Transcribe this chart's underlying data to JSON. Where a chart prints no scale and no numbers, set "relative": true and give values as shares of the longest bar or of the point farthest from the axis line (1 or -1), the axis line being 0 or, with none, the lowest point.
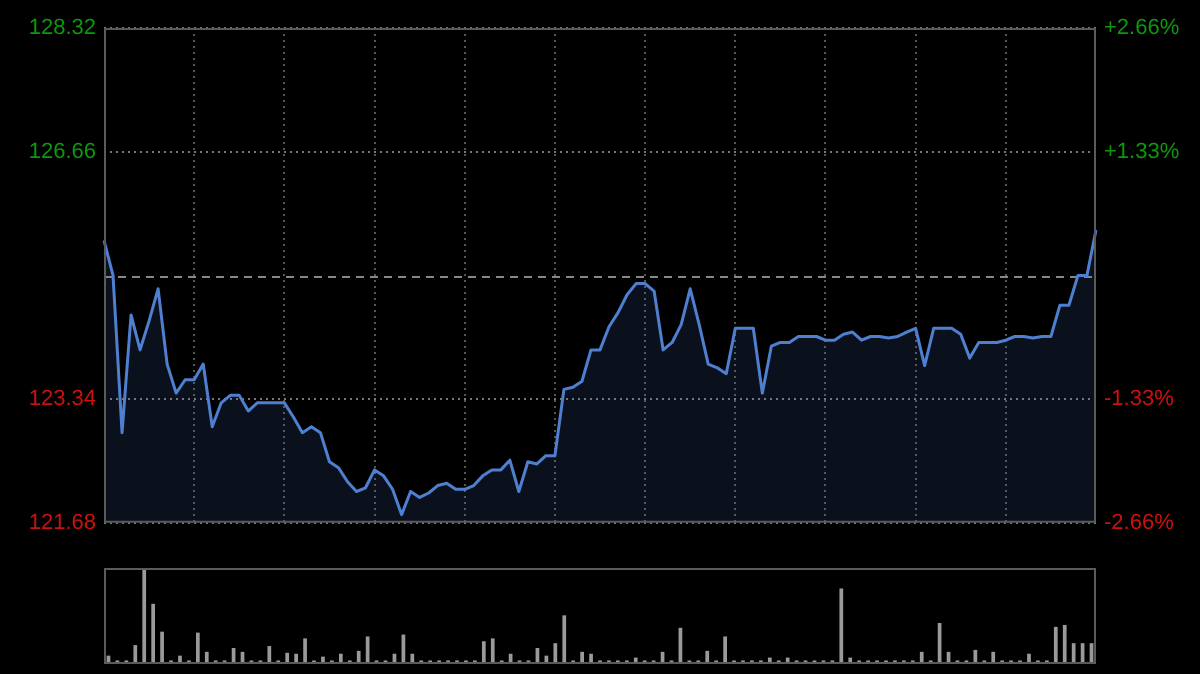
{
  "chart_data": [
    {
      "type": "area",
      "categories": [
        null,
        null,
        null,
        null,
        null,
        null,
        null,
        null,
        null,
        null,
        null,
        null,
        null,
        null,
        null,
        null,
        null,
        null,
        null,
        null,
        null,
        null,
        null,
        null,
        null,
        null,
        null,
        null,
        null,
        null,
        null,
        null,
        null,
        null,
        null,
        null,
        null,
        null,
        null,
        null,
        null,
        null,
        null,
        null,
        null,
        null,
        null,
        null,
        null,
        null,
        null,
        null,
        null,
        null,
        null,
        null,
        null,
        null,
        null,
        null,
        null,
        null,
        null,
        null,
        null,
        null,
        null,
        null,
        null,
        null,
        null,
        null,
        null,
        null,
        null,
        null,
        null,
        null,
        null,
        null,
        null,
        null,
        null,
        null,
        null,
        null,
        null,
        null,
        null,
        null,
        null,
        null,
        null,
        null,
        null,
        null,
        null,
        null,
        null,
        null,
        null,
        null,
        null,
        null,
        null,
        null,
        null,
        null,
        null,
        null,
        null
      ],
      "series": [
        {
          "color": "#4f7fd0",
          "values": [
            125.47,
            125.0,
            122.89,
            124.47,
            124.0,
            124.39,
            124.82,
            123.81,
            123.42,
            123.6,
            123.6,
            123.81,
            122.97,
            123.29,
            123.39,
            123.39,
            123.18,
            123.29,
            123.29,
            123.29,
            123.29,
            123.1,
            122.89,
            122.97,
            122.89,
            122.5,
            122.42,
            122.23,
            122.1,
            122.15,
            122.39,
            122.31,
            122.13,
            121.79,
            122.1,
            122.02,
            122.08,
            122.18,
            122.21,
            122.13,
            122.13,
            122.18,
            122.31,
            122.39,
            122.39,
            122.52,
            122.1,
            122.5,
            122.47,
            122.58,
            122.58,
            123.47,
            123.5,
            123.58,
            124.0,
            124.0,
            124.31,
            124.5,
            124.74,
            124.89,
            124.89,
            124.79,
            124.0,
            124.1,
            124.34,
            124.82,
            124.34,
            123.81,
            123.76,
            123.68,
            124.29,
            124.29,
            124.29,
            123.42,
            124.05,
            124.1,
            124.1,
            124.18,
            124.18,
            124.18,
            124.13,
            124.13,
            124.21,
            124.24,
            124.13,
            124.18,
            124.18,
            124.16,
            124.18,
            124.24,
            124.29,
            123.79,
            124.29,
            124.29,
            124.29,
            124.21,
            123.89,
            124.1,
            124.1,
            124.1,
            124.13,
            124.18,
            124.18,
            124.16,
            124.18,
            124.18,
            124.6,
            124.6,
            125.0,
            125.0,
            125.61
          ]
        }
      ],
      "ylim": [
        121.68,
        128.32
      ],
      "yticks": [
        121.68,
        123.34,
        126.66,
        128.32
      ],
      "y2lim": [
        -2.66,
        2.66
      ],
      "y2ticks": [
        {
          "value": 2.66,
          "label": "+2.66%"
        },
        {
          "value": 1.33,
          "label": "+1.33%"
        },
        {
          "value": -1.33,
          "label": "-1.33%"
        },
        {
          "value": -2.66,
          "label": "-2.66%"
        }
      ],
      "ref_lines": [
        {
          "axis": "y",
          "value": 125.0,
          "line_style": "dashed"
        }
      ],
      "grid": true,
      "marker": "none",
      "legend": false
    },
    {
      "type": "bar",
      "relative": true,
      "color": "#9a9a9a",
      "categories": [
        null,
        null,
        null,
        null,
        null,
        null,
        null,
        null,
        null,
        null,
        null,
        null,
        null,
        null,
        null,
        null,
        null,
        null,
        null,
        null,
        null,
        null,
        null,
        null,
        null,
        null,
        null,
        null,
        null,
        null,
        null,
        null,
        null,
        null,
        null,
        null,
        null,
        null,
        null,
        null,
        null,
        null,
        null,
        null,
        null,
        null,
        null,
        null,
        null,
        null,
        null,
        null,
        null,
        null,
        null,
        null,
        null,
        null,
        null,
        null,
        null,
        null,
        null,
        null,
        null,
        null,
        null,
        null,
        null,
        null,
        null,
        null,
        null,
        null,
        null,
        null,
        null,
        null,
        null,
        null,
        null,
        null,
        null,
        null,
        null,
        null,
        null,
        null,
        null,
        null,
        null,
        null,
        null,
        null,
        null,
        null,
        null,
        null,
        null,
        null,
        null,
        null,
        null,
        null,
        null,
        null,
        null,
        null,
        null,
        null,
        null
      ],
      "values": [
        0.08,
        0.03,
        0.03,
        0.19,
        1,
        0.62,
        0.33,
        0.03,
        0.08,
        0.03,
        0.32,
        0.12,
        0.03,
        0.03,
        0.16,
        0.12,
        0.03,
        0.03,
        0.18,
        0.03,
        0.11,
        0.1,
        0.26,
        0.03,
        0.07,
        0.03,
        0.1,
        0.03,
        0.13,
        0.28,
        0.03,
        0.03,
        0.1,
        0.3,
        0.1,
        0.03,
        0.03,
        0.03,
        0.03,
        0.03,
        0.03,
        0.03,
        0.23,
        0.26,
        0.03,
        0.1,
        0.03,
        0.03,
        0.16,
        0.08,
        0.21,
        0.5,
        0.03,
        0.12,
        0.1,
        0.03,
        0.03,
        0.03,
        0.03,
        0.06,
        0.03,
        0.03,
        0.12,
        0.03,
        0.37,
        0.03,
        0.03,
        0.13,
        0.03,
        0.28,
        0.03,
        0.03,
        0.03,
        0.03,
        0.06,
        0.03,
        0.06,
        0.03,
        0.03,
        0.03,
        0.03,
        0.03,
        0.78,
        0.06,
        0.03,
        0.03,
        0.03,
        0.03,
        0.03,
        0.03,
        0.03,
        0.12,
        0.03,
        0.42,
        0.12,
        0.03,
        0.03,
        0.14,
        0.03,
        0.12,
        0.03,
        0.03,
        0.03,
        0.1,
        0.03,
        0.03,
        0.38,
        0.4,
        0.21,
        0.21,
        0.21
      ]
    }
  ]
}
